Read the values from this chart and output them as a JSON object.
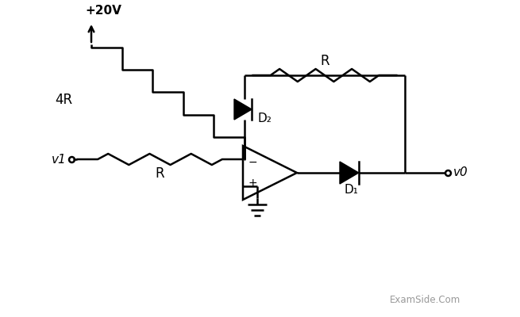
{
  "bg_color": "#ffffff",
  "line_color": "#000000",
  "watermark_color": "#999999",
  "title": "+20V",
  "label_v1": "v1",
  "label_v0": "v0",
  "label_4R": "4R",
  "label_R_top": "R",
  "label_R_bot": "R",
  "label_D1": "D₁",
  "label_D2": "D₂",
  "watermark": "ExamSide.Com",
  "figsize": [
    6.55,
    4.0
  ],
  "dpi": 100
}
